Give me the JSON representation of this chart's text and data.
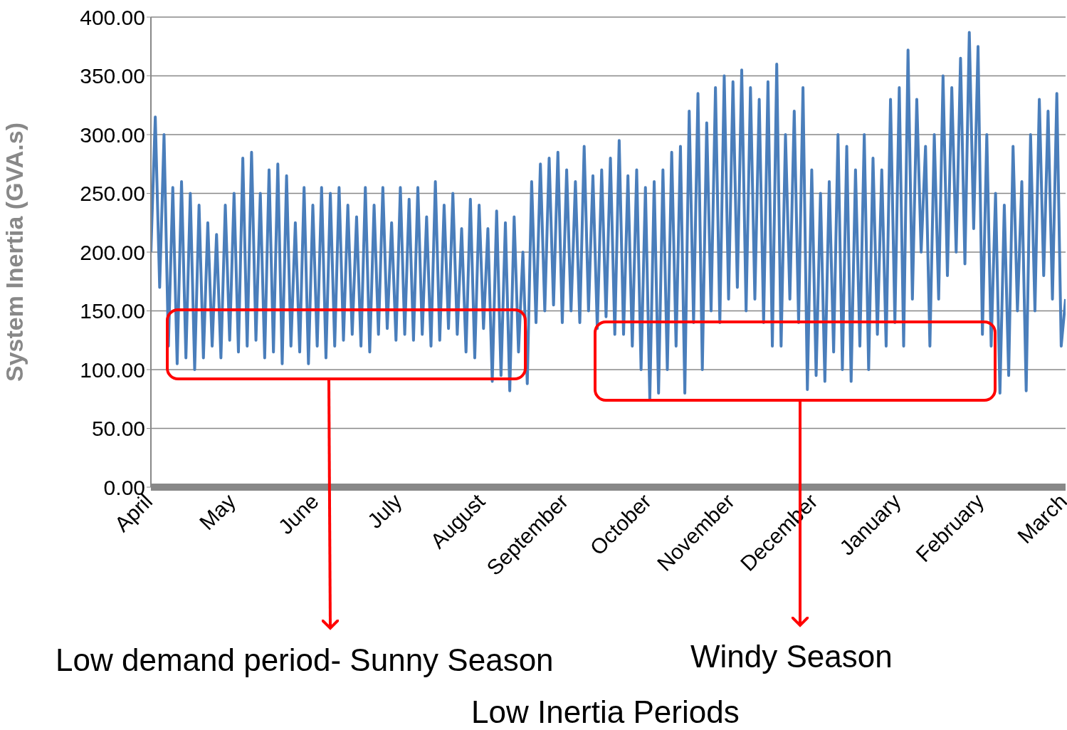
{
  "chart_data": {
    "type": "line",
    "ylabel": "System Inertia (GVA.s)",
    "categories": [
      "April",
      null,
      null,
      null,
      null,
      null,
      null,
      null,
      null,
      null,
      null,
      null,
      null,
      null,
      null,
      null,
      null,
      null,
      null,
      "May",
      null,
      null,
      null,
      null,
      null,
      null,
      null,
      null,
      null,
      null,
      null,
      null,
      null,
      null,
      null,
      null,
      null,
      null,
      "June",
      null,
      null,
      null,
      null,
      null,
      null,
      null,
      null,
      null,
      null,
      null,
      null,
      null,
      null,
      null,
      null,
      null,
      null,
      "July",
      null,
      null,
      null,
      null,
      null,
      null,
      null,
      null,
      null,
      null,
      null,
      null,
      null,
      null,
      null,
      null,
      null,
      null,
      "August",
      null,
      null,
      null,
      null,
      null,
      null,
      null,
      null,
      null,
      null,
      null,
      null,
      null,
      null,
      null,
      null,
      null,
      null,
      "September",
      null,
      null,
      null,
      null,
      null,
      null,
      null,
      null,
      null,
      null,
      null,
      null,
      null,
      null,
      null,
      null,
      null,
      null,
      "October",
      null,
      null,
      null,
      null,
      null,
      null,
      null,
      null,
      null,
      null,
      null,
      null,
      null,
      null,
      null,
      null,
      null,
      null,
      "November",
      null,
      null,
      null,
      null,
      null,
      null,
      null,
      null,
      null,
      null,
      null,
      null,
      null,
      null,
      null,
      null,
      null,
      null,
      "December",
      null,
      null,
      null,
      null,
      null,
      null,
      null,
      null,
      null,
      null,
      null,
      null,
      null,
      null,
      null,
      null,
      null,
      null,
      "January",
      null,
      null,
      null,
      null,
      null,
      null,
      null,
      null,
      null,
      null,
      null,
      null,
      null,
      null,
      null,
      null,
      null,
      null,
      "February",
      null,
      null,
      null,
      null,
      null,
      null,
      null,
      null,
      null,
      null,
      null,
      null,
      null,
      null,
      null,
      null,
      null,
      null,
      "March"
    ],
    "series": [
      {
        "color": "#4a7ebb",
        "values": [
          200,
          315,
          170,
          300,
          120,
          255,
          105,
          260,
          110,
          250,
          100,
          240,
          110,
          225,
          120,
          215,
          110,
          240,
          125,
          250,
          115,
          280,
          120,
          285,
          125,
          250,
          110,
          270,
          115,
          275,
          105,
          265,
          120,
          225,
          115,
          255,
          105,
          240,
          120,
          255,
          110,
          250,
          120,
          255,
          125,
          240,
          130,
          230,
          120,
          255,
          115,
          240,
          130,
          255,
          135,
          225,
          125,
          255,
          130,
          245,
          125,
          255,
          130,
          230,
          120,
          260,
          125,
          240,
          135,
          250,
          130,
          220,
          115,
          245,
          110,
          240,
          135,
          220,
          90,
          235,
          95,
          225,
          82,
          230,
          115,
          200,
          88,
          260,
          140,
          275,
          150,
          280,
          155,
          285,
          140,
          270,
          150,
          260,
          140,
          290,
          150,
          265,
          135,
          270,
          145,
          280,
          130,
          295,
          130,
          265,
          120,
          270,
          100,
          255,
          75,
          260,
          80,
          270,
          100,
          285,
          120,
          290,
          80,
          320,
          140,
          335,
          100,
          310,
          150,
          340,
          140,
          350,
          160,
          345,
          170,
          355,
          150,
          340,
          160,
          330,
          140,
          345,
          120,
          360,
          120,
          300,
          160,
          320,
          140,
          340,
          83,
          270,
          95,
          250,
          90,
          260,
          115,
          300,
          100,
          290,
          90,
          270,
          120,
          300,
          100,
          280,
          130,
          270,
          120,
          330,
          140,
          340,
          120,
          372,
          160,
          330,
          200,
          290,
          120,
          300,
          160,
          350,
          180,
          340,
          200,
          365,
          190,
          387,
          220,
          375,
          130,
          300,
          120,
          250,
          80,
          240,
          95,
          290,
          150,
          260,
          82,
          300,
          150,
          330,
          180,
          320,
          160,
          335,
          120,
          160
        ]
      }
    ],
    "ylim": [
      0,
      400
    ],
    "yticks": [
      {
        "value": 0,
        "label": "0.00"
      },
      {
        "value": 50,
        "label": "50.00"
      },
      {
        "value": 100,
        "label": "100.00"
      },
      {
        "value": 150,
        "label": "150.00"
      },
      {
        "value": 200,
        "label": "200.00"
      },
      {
        "value": 250,
        "label": "250.00"
      },
      {
        "value": 300,
        "label": "300.00"
      },
      {
        "value": 350,
        "label": "350.00"
      },
      {
        "value": 400,
        "label": "400.00"
      }
    ],
    "grid": "y",
    "line_style": "solid",
    "annotations": [
      "Low demand period- Sunny Season",
      "Windy Season",
      "Low Inertia Periods"
    ]
  }
}
